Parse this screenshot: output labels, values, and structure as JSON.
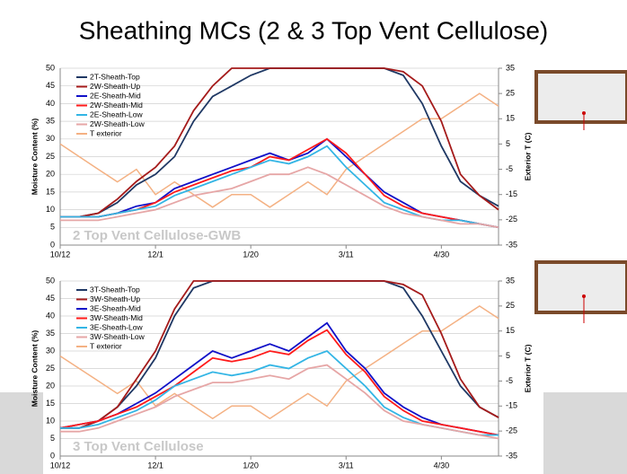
{
  "title": "Sheathing MCs (2 & 3 Top Vent Cellulose)",
  "chart_data": [
    {
      "type": "line",
      "annotation": "2 Top Vent Cellulose-GWB",
      "y_label": "Moisture Content (%)",
      "y2_label": "Exterior T (C)",
      "x": [
        "10/12",
        "10/22",
        "11/1",
        "11/11",
        "11/21",
        "12/1",
        "12/11",
        "12/21",
        "12/31",
        "1/10",
        "1/20",
        "1/30",
        "2/9",
        "2/19",
        "3/1",
        "3/11",
        "3/21",
        "3/31",
        "4/10",
        "4/20",
        "4/30",
        "5/10",
        "5/20",
        "5/30"
      ],
      "xticks": [
        "10/12",
        "12/1",
        "1/20",
        "3/11",
        "4/30"
      ],
      "ylim": [
        0,
        50
      ],
      "yticks": [
        0,
        5,
        10,
        15,
        20,
        25,
        30,
        35,
        40,
        45,
        50
      ],
      "y2lim": [
        -35,
        35
      ],
      "y2ticks": [
        -35,
        -25,
        -15,
        -5,
        5,
        15,
        25,
        35
      ],
      "series": [
        {
          "name": "2T-Sheath-Top",
          "color": "#1f3864",
          "values": [
            8,
            8,
            9,
            12,
            17,
            20,
            25,
            35,
            42,
            45,
            48,
            50,
            50,
            50,
            50,
            50,
            50,
            50,
            48,
            40,
            28,
            18,
            14,
            11
          ]
        },
        {
          "name": "2W-Sheath-Up",
          "color": "#a51b1b",
          "values": [
            8,
            8,
            9,
            13,
            18,
            22,
            28,
            38,
            45,
            50,
            50,
            50,
            50,
            50,
            50,
            50,
            50,
            50,
            49,
            45,
            35,
            20,
            14,
            10
          ]
        },
        {
          "name": "2E-Sheath-Mid",
          "color": "#1010c8",
          "values": [
            8,
            8,
            8,
            9,
            11,
            12,
            16,
            18,
            20,
            22,
            24,
            26,
            24,
            26,
            30,
            25,
            20,
            15,
            12,
            9,
            8,
            7,
            6,
            5
          ]
        },
        {
          "name": "2W-Sheath-Mid",
          "color": "#ff1a1a",
          "values": [
            8,
            8,
            8,
            9,
            10,
            12,
            15,
            17,
            19,
            21,
            22,
            25,
            24,
            27,
            30,
            26,
            20,
            14,
            11,
            9,
            8,
            7,
            6,
            5
          ]
        },
        {
          "name": "2E-Sheath-Low",
          "color": "#33b5e5",
          "values": [
            8,
            8,
            8,
            9,
            10,
            11,
            14,
            16,
            18,
            20,
            22,
            24,
            23,
            25,
            28,
            22,
            17,
            12,
            10,
            8,
            7,
            7,
            6,
            5
          ]
        },
        {
          "name": "2W-Sheath-Low",
          "color": "#e6a6a6",
          "values": [
            7,
            7,
            7,
            8,
            9,
            10,
            12,
            14,
            15,
            16,
            18,
            20,
            20,
            22,
            20,
            17,
            14,
            11,
            9,
            8,
            7,
            6,
            6,
            5
          ]
        },
        {
          "name": "T exterior",
          "color": "#f4b183",
          "axis": "y2",
          "values": [
            5,
            0,
            -5,
            -10,
            -5,
            -15,
            -10,
            -15,
            -20,
            -15,
            -15,
            -20,
            -15,
            -10,
            -15,
            -5,
            0,
            5,
            10,
            15,
            15,
            20,
            25,
            20
          ]
        }
      ]
    },
    {
      "type": "line",
      "annotation": "3 Top Vent Cellulose",
      "y_label": "Moisture Content (%)",
      "y2_label": "Exterior T (C)",
      "x": [
        "10/12",
        "10/22",
        "11/1",
        "11/11",
        "11/21",
        "12/1",
        "12/11",
        "12/21",
        "12/31",
        "1/10",
        "1/20",
        "1/30",
        "2/9",
        "2/19",
        "3/1",
        "3/11",
        "3/21",
        "3/31",
        "4/10",
        "4/20",
        "4/30",
        "5/10",
        "5/20",
        "5/30"
      ],
      "xticks": [
        "10/12",
        "12/1",
        "1/20",
        "3/11",
        "4/30"
      ],
      "ylim": [
        0,
        50
      ],
      "yticks": [
        0,
        5,
        10,
        15,
        20,
        25,
        30,
        35,
        40,
        45,
        50
      ],
      "y2lim": [
        -35,
        35
      ],
      "y2ticks": [
        -35,
        -25,
        -15,
        -5,
        5,
        15,
        25,
        35
      ],
      "series": [
        {
          "name": "3T-Sheath-Top",
          "color": "#1f3864",
          "values": [
            8,
            8,
            10,
            14,
            20,
            28,
            40,
            48,
            50,
            50,
            50,
            50,
            50,
            50,
            50,
            50,
            50,
            50,
            48,
            40,
            30,
            20,
            14,
            11
          ]
        },
        {
          "name": "3W-Sheath-Up",
          "color": "#a51b1b",
          "values": [
            8,
            8,
            10,
            14,
            22,
            30,
            42,
            50,
            50,
            50,
            50,
            50,
            50,
            50,
            50,
            50,
            50,
            50,
            49,
            46,
            35,
            22,
            14,
            11
          ]
        },
        {
          "name": "3E-Sheath-Mid",
          "color": "#1010c8",
          "values": [
            8,
            9,
            10,
            12,
            15,
            18,
            22,
            26,
            30,
            28,
            30,
            32,
            30,
            34,
            38,
            30,
            25,
            18,
            14,
            11,
            9,
            8,
            7,
            6
          ]
        },
        {
          "name": "3W-Sheath-Mid",
          "color": "#ff1a1a",
          "values": [
            8,
            9,
            10,
            12,
            14,
            17,
            20,
            24,
            28,
            27,
            28,
            30,
            29,
            33,
            36,
            29,
            24,
            17,
            13,
            10,
            9,
            8,
            7,
            6
          ]
        },
        {
          "name": "3E-Sheath-Low",
          "color": "#33b5e5",
          "values": [
            8,
            8,
            9,
            11,
            13,
            16,
            20,
            22,
            24,
            23,
            24,
            26,
            25,
            28,
            30,
            25,
            20,
            14,
            11,
            9,
            8,
            7,
            6,
            6
          ]
        },
        {
          "name": "3W-Sheath-Low",
          "color": "#e6a6a6",
          "values": [
            7,
            7,
            8,
            10,
            12,
            14,
            17,
            19,
            21,
            21,
            22,
            23,
            22,
            25,
            26,
            22,
            18,
            13,
            10,
            9,
            8,
            7,
            6,
            5
          ]
        },
        {
          "name": "T exterior",
          "color": "#f4b183",
          "axis": "y2",
          "values": [
            5,
            0,
            -5,
            -10,
            -5,
            -15,
            -10,
            -15,
            -20,
            -15,
            -15,
            -20,
            -15,
            -10,
            -15,
            -5,
            0,
            5,
            10,
            15,
            15,
            20,
            25,
            20
          ]
        }
      ]
    }
  ]
}
